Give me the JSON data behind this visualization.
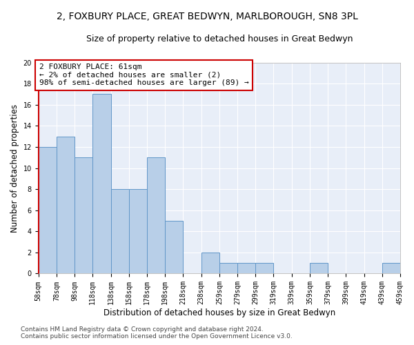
{
  "title": "2, FOXBURY PLACE, GREAT BEDWYN, MARLBOROUGH, SN8 3PL",
  "subtitle": "Size of property relative to detached houses in Great Bedwyn",
  "xlabel": "Distribution of detached houses by size in Great Bedwyn",
  "ylabel": "Number of detached properties",
  "bar_values": [
    12,
    13,
    11,
    17,
    8,
    8,
    11,
    5,
    0,
    2,
    1,
    1,
    1,
    0,
    0,
    1,
    0,
    0,
    0,
    1
  ],
  "bar_labels": [
    "58sqm",
    "78sqm",
    "98sqm",
    "118sqm",
    "138sqm",
    "158sqm",
    "178sqm",
    "198sqm",
    "218sqm",
    "238sqm",
    "259sqm",
    "279sqm",
    "299sqm",
    "319sqm",
    "339sqm",
    "359sqm",
    "379sqm",
    "399sqm",
    "419sqm",
    "439sqm",
    "459sqm"
  ],
  "bar_color": "#b8cfe8",
  "bar_edge_color": "#6096c8",
  "highlight_color": "#cc0000",
  "annotation_line1": "2 FOXBURY PLACE: 61sqm",
  "annotation_line2": "← 2% of detached houses are smaller (2)",
  "annotation_line3": "98% of semi-detached houses are larger (89) →",
  "annotation_box_color": "#ffffff",
  "annotation_box_edge_color": "#cc0000",
  "ylim": [
    0,
    20
  ],
  "yticks": [
    0,
    2,
    4,
    6,
    8,
    10,
    12,
    14,
    16,
    18,
    20
  ],
  "background_color": "#e8eef8",
  "grid_color": "#ffffff",
  "footer": "Contains HM Land Registry data © Crown copyright and database right 2024.\nContains public sector information licensed under the Open Government Licence v3.0.",
  "title_fontsize": 10,
  "subtitle_fontsize": 9,
  "xlabel_fontsize": 8.5,
  "ylabel_fontsize": 8.5,
  "tick_fontsize": 7,
  "annotation_fontsize": 8,
  "footer_fontsize": 6.5
}
